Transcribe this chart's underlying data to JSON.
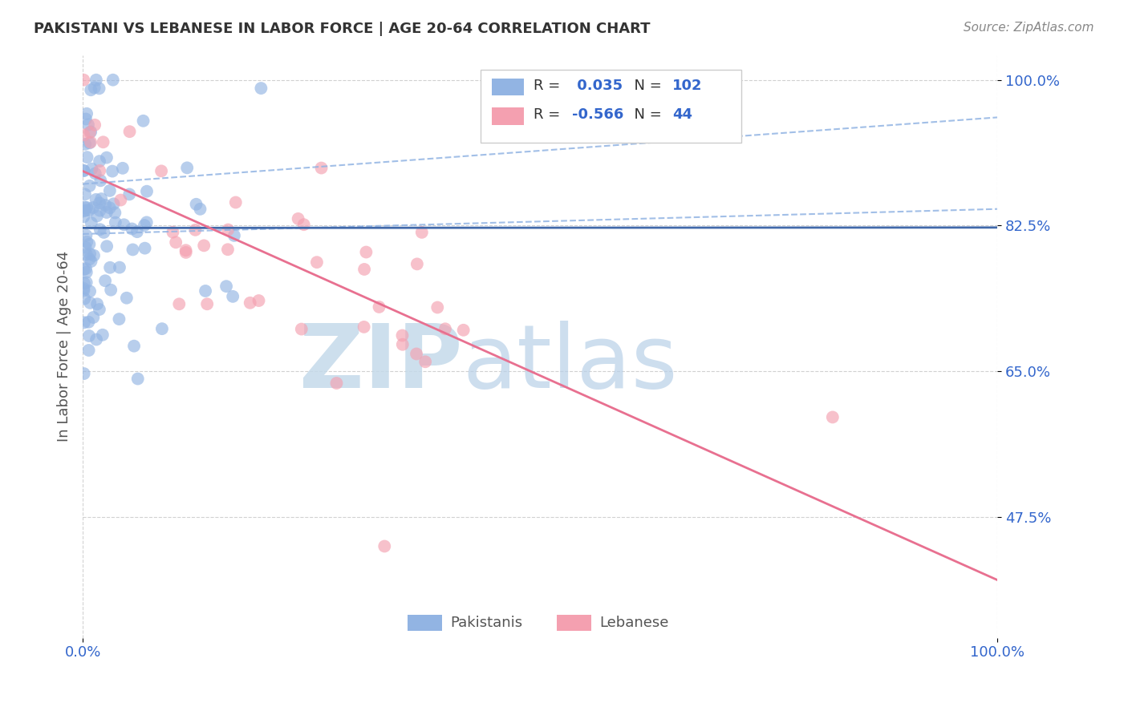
{
  "title": "PAKISTANI VS LEBANESE IN LABOR FORCE | AGE 20-64 CORRELATION CHART",
  "source": "Source: ZipAtlas.com",
  "ylabel": "In Labor Force | Age 20-64",
  "xlim": [
    0.0,
    1.0
  ],
  "ylim": [
    0.33,
    1.03
  ],
  "yticks": [
    0.475,
    0.65,
    0.825,
    1.0
  ],
  "ytick_labels": [
    "47.5%",
    "65.0%",
    "82.5%",
    "100.0%"
  ],
  "pakistani_color": "#92b4e3",
  "lebanese_color": "#f4a0b0",
  "pakistani_line_color": "#4169aa",
  "lebanese_line_color": "#e87090",
  "dashed_line_color": "#92b4e3",
  "R_pakistani": 0.035,
  "N_pakistani": 102,
  "R_lebanese": -0.566,
  "N_lebanese": 44,
  "legend_pakistani_label": "Pakistanis",
  "legend_lebanese_label": "Lebanese",
  "watermark_zip": "ZIP",
  "watermark_atlas": "atlas",
  "watermark_color_zip": "#c8dff0",
  "watermark_color_atlas": "#b0cce0"
}
